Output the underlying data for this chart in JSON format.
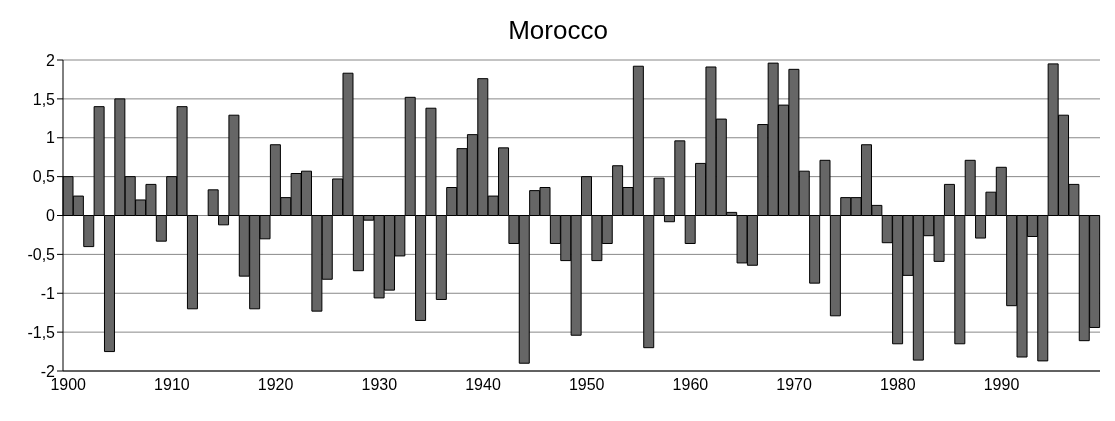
{
  "chart_data": {
    "type": "bar",
    "title": "Morocco",
    "categories": [
      "1900",
      null,
      null,
      null,
      null,
      null,
      null,
      null,
      null,
      null,
      "1910",
      null,
      null,
      null,
      null,
      null,
      null,
      null,
      null,
      null,
      "1920",
      null,
      null,
      null,
      null,
      null,
      null,
      null,
      null,
      null,
      "1930",
      null,
      null,
      null,
      null,
      null,
      null,
      null,
      null,
      null,
      "1940",
      null,
      null,
      null,
      null,
      null,
      null,
      null,
      null,
      null,
      "1950",
      null,
      null,
      null,
      null,
      null,
      null,
      null,
      null,
      null,
      "1960",
      null,
      null,
      null,
      null,
      null,
      null,
      null,
      null,
      null,
      "1970",
      null,
      null,
      null,
      null,
      null,
      null,
      null,
      null,
      null,
      "1980",
      null,
      null,
      null,
      null,
      null,
      null,
      null,
      null,
      null,
      "1990",
      null,
      null,
      null,
      null,
      null,
      null,
      null,
      null,
      null
    ],
    "values": [
      0.5,
      0.25,
      -0.4,
      1.4,
      -1.75,
      1.5,
      0.5,
      0.2,
      0.4,
      -0.33,
      0.5,
      1.4,
      -1.2,
      0,
      0.33,
      -0.12,
      1.29,
      -0.78,
      -1.2,
      -0.3,
      0.91,
      0.23,
      0.54,
      0.57,
      -1.23,
      -0.82,
      0.47,
      1.83,
      -0.71,
      -0.06,
      -1.06,
      -0.96,
      -0.52,
      1.52,
      -1.35,
      1.38,
      -1.08,
      0.36,
      0.86,
      1.04,
      1.76,
      0.25,
      0.87,
      -0.36,
      -1.9,
      0.32,
      0.36,
      -0.36,
      -0.58,
      -1.54,
      0.5,
      -0.58,
      -0.36,
      0.64,
      0.36,
      1.92,
      -1.7,
      0.48,
      -0.08,
      0.96,
      -0.36,
      0.67,
      1.91,
      1.24,
      0.04,
      -0.61,
      -0.64,
      1.17,
      1.96,
      1.42,
      1.88,
      0.57,
      -0.87,
      0.71,
      -1.29,
      0.23,
      0.23,
      0.91,
      0.13,
      -0.35,
      -1.65,
      -0.77,
      -1.86,
      -0.26,
      -0.59,
      0.4,
      -1.65,
      0.71,
      -0.29,
      0.3,
      0.62,
      -1.16,
      -1.82,
      -0.27,
      -1.87,
      1.95,
      1.29,
      0.4,
      -1.61,
      -1.44
    ],
    "color": "#666666",
    "ylim": [
      -2,
      2
    ],
    "yticks": [
      {
        "value": -2,
        "label": "-2"
      },
      {
        "value": -1.5,
        "label": "-1,5"
      },
      {
        "value": -1,
        "label": "-1"
      },
      {
        "value": -0.5,
        "label": "-0,5"
      },
      {
        "value": 0,
        "label": "0"
      },
      {
        "value": 0.5,
        "label": "0,5"
      },
      {
        "value": 1,
        "label": "1"
      },
      {
        "value": 1.5,
        "label": "1,5"
      },
      {
        "value": 2,
        "label": "2"
      }
    ],
    "grid": "y"
  }
}
